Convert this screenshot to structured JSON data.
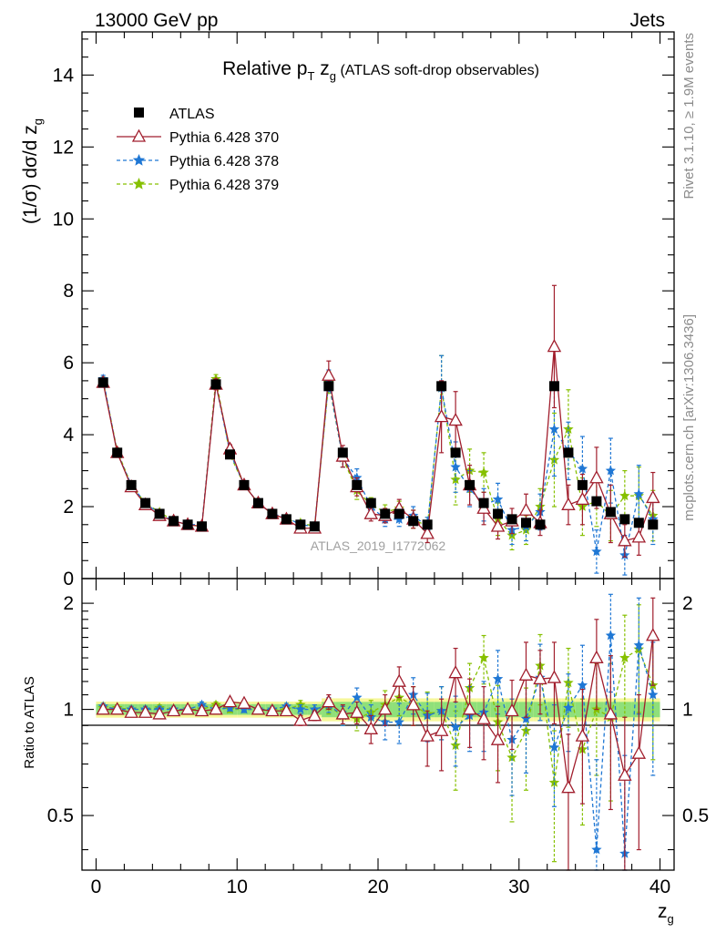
{
  "header": {
    "left": "13000 GeV pp",
    "right": "Jets"
  },
  "side_labels": {
    "top": "Rivet 3.1.10, ≥ 1.9M events",
    "bottom": "mcplots.cern.ch [arXiv:1306.3436]"
  },
  "watermark": "ATLAS_2019_I1772062",
  "chart_data": [
    {
      "type": "scatter",
      "panel": "main",
      "title": {
        "main": "Relative p",
        "sub1": "T",
        "mid": " z",
        "sub2": "g",
        "rest": " (ATLAS soft-drop observables)"
      },
      "ylabel": {
        "main": "(1/σ) dσ/d z",
        "sub": "g"
      },
      "xlim": [
        -1,
        41
      ],
      "ylim": [
        0,
        15.2
      ],
      "yticks": [
        "0",
        "2",
        "4",
        "6",
        "8",
        "10",
        "12",
        "14"
      ],
      "xticks": [
        "0",
        "10",
        "20",
        "30",
        "40"
      ],
      "legend_position": "top-left",
      "x": [
        0.5,
        1.5,
        2.5,
        3.5,
        4.5,
        5.5,
        6.5,
        7.5,
        8.5,
        9.5,
        10.5,
        11.5,
        12.5,
        13.5,
        14.5,
        15.5,
        16.5,
        17.5,
        18.5,
        19.5,
        20.5,
        21.5,
        22.5,
        23.5,
        24.5,
        25.5,
        26.5,
        27.5,
        28.5,
        29.5,
        30.5,
        31.5,
        32.5,
        33.5,
        34.5,
        35.5,
        36.5,
        37.5,
        38.5,
        39.5
      ],
      "series": [
        {
          "name": "ATLAS",
          "color": "#000000",
          "marker": "square",
          "values": [
            5.45,
            3.5,
            2.6,
            2.1,
            1.8,
            1.6,
            1.5,
            1.45,
            5.4,
            3.45,
            2.6,
            2.1,
            1.8,
            1.65,
            1.5,
            1.45,
            5.35,
            3.5,
            2.6,
            2.1,
            1.8,
            1.8,
            1.6,
            1.5,
            5.35,
            3.5,
            2.6,
            2.1,
            1.8,
            1.65,
            1.55,
            1.5,
            5.35,
            3.5,
            2.6,
            2.15,
            1.85,
            1.65,
            1.55,
            1.5
          ]
        },
        {
          "name": "Pythia 6.428 370",
          "color": "#a11e2d",
          "marker": "triangle",
          "values": [
            5.45,
            3.5,
            2.55,
            2.05,
            1.75,
            1.6,
            1.5,
            1.45,
            5.4,
            3.6,
            2.6,
            2.1,
            1.8,
            1.65,
            1.4,
            1.4,
            5.65,
            3.4,
            2.55,
            1.8,
            1.75,
            1.95,
            1.65,
            1.25,
            4.5,
            4.4,
            2.6,
            1.95,
            1.45,
            1.6,
            1.9,
            1.55,
            6.45,
            2.05,
            2.2,
            2.8,
            1.8,
            1.05,
            1.15,
            2.25
          ],
          "errors": [
            0.12,
            0.1,
            0.08,
            0.07,
            0.07,
            0.06,
            0.06,
            0.06,
            0.15,
            0.12,
            0.1,
            0.09,
            0.08,
            0.08,
            0.08,
            0.08,
            0.4,
            0.3,
            0.25,
            0.2,
            0.2,
            0.25,
            0.25,
            0.25,
            1.0,
            0.8,
            0.55,
            0.45,
            0.35,
            0.35,
            0.45,
            0.35,
            1.7,
            0.55,
            0.7,
            0.85,
            0.8,
            0.45,
            0.5,
            0.7
          ]
        },
        {
          "name": "Pythia 6.428 378",
          "color": "#1f77d4",
          "marker": "star",
          "values": [
            5.55,
            3.5,
            2.6,
            2.1,
            1.8,
            1.6,
            1.5,
            1.5,
            5.4,
            3.5,
            2.6,
            2.1,
            1.8,
            1.7,
            1.5,
            1.45,
            5.5,
            3.35,
            2.8,
            2.0,
            1.65,
            1.65,
            1.75,
            1.45,
            5.3,
            3.1,
            2.5,
            2.05,
            2.2,
            1.35,
            1.45,
            1.85,
            4.15,
            3.55,
            3.05,
            0.75,
            3.0,
            0.65,
            2.35,
            1.65
          ],
          "errors": [
            0.1,
            0.08,
            0.06,
            0.06,
            0.05,
            0.05,
            0.05,
            0.05,
            0.12,
            0.1,
            0.08,
            0.07,
            0.07,
            0.06,
            0.06,
            0.06,
            0.3,
            0.25,
            0.25,
            0.2,
            0.2,
            0.2,
            0.25,
            0.25,
            0.9,
            0.7,
            0.5,
            0.45,
            0.45,
            0.4,
            0.4,
            0.5,
            1.3,
            0.8,
            0.9,
            0.6,
            0.9,
            0.55,
            0.8,
            0.7
          ]
        },
        {
          "name": "Pythia 6.428 379",
          "color": "#86c000",
          "marker": "star",
          "values": [
            5.5,
            3.55,
            2.6,
            2.1,
            1.85,
            1.6,
            1.5,
            1.45,
            5.55,
            3.45,
            2.6,
            2.1,
            1.8,
            1.65,
            1.55,
            1.45,
            5.45,
            3.35,
            2.45,
            2.05,
            1.85,
            1.95,
            1.65,
            1.45,
            5.3,
            2.75,
            3.0,
            2.95,
            1.65,
            1.2,
            1.35,
            2.0,
            3.3,
            4.15,
            2.0,
            2.15,
            1.75,
            2.3,
            2.3,
            1.75
          ],
          "errors": [
            0.1,
            0.08,
            0.06,
            0.06,
            0.05,
            0.05,
            0.05,
            0.05,
            0.12,
            0.1,
            0.08,
            0.07,
            0.07,
            0.06,
            0.06,
            0.06,
            0.3,
            0.25,
            0.25,
            0.2,
            0.2,
            0.2,
            0.25,
            0.25,
            0.9,
            0.7,
            0.6,
            0.55,
            0.45,
            0.4,
            0.4,
            0.5,
            1.3,
            1.1,
            0.8,
            0.7,
            0.7,
            0.7,
            0.8,
            0.7
          ]
        }
      ]
    },
    {
      "type": "scatter",
      "panel": "ratio",
      "ylabel": "Ratio to ATLAS",
      "xlabel": {
        "main": "z",
        "sub": "g"
      },
      "xlim": [
        -1,
        41
      ],
      "ylim": [
        0.35,
        2.35
      ],
      "yticks": [
        "0.5",
        "1",
        "2"
      ],
      "xticks": [
        "0",
        "10",
        "20",
        "30",
        "40"
      ],
      "x": [
        0.5,
        1.5,
        2.5,
        3.5,
        4.5,
        5.5,
        6.5,
        7.5,
        8.5,
        9.5,
        10.5,
        11.5,
        12.5,
        13.5,
        14.5,
        15.5,
        16.5,
        17.5,
        18.5,
        19.5,
        20.5,
        21.5,
        22.5,
        23.5,
        24.5,
        25.5,
        26.5,
        27.5,
        28.5,
        29.5,
        30.5,
        31.5,
        32.5,
        33.5,
        34.5,
        35.5,
        36.5,
        37.5,
        38.5,
        39.5
      ],
      "band_color_inner": "#8fe07a",
      "band_color_outer": "#f6f79a",
      "series": [
        {
          "name": "Pythia 6.428 370",
          "color": "#a11e2d",
          "marker": "triangle",
          "values": [
            1.0,
            1.0,
            0.98,
            0.98,
            0.97,
            0.99,
            1.0,
            0.99,
            1.0,
            1.05,
            1.04,
            1.0,
            0.99,
            0.99,
            0.93,
            0.96,
            1.05,
            0.97,
            0.98,
            0.88,
            1.0,
            1.2,
            1.03,
            0.84,
            0.87,
            1.27,
            1.0,
            0.94,
            0.82,
            0.99,
            1.25,
            1.22,
            1.23,
            0.6,
            0.84,
            1.4,
            0.97,
            0.65,
            0.75,
            1.62
          ],
          "errors": [
            0.02,
            0.02,
            0.02,
            0.02,
            0.02,
            0.02,
            0.02,
            0.02,
            0.02,
            0.02,
            0.02,
            0.02,
            0.02,
            0.02,
            0.03,
            0.03,
            0.05,
            0.06,
            0.07,
            0.08,
            0.1,
            0.12,
            0.13,
            0.15,
            0.2,
            0.22,
            0.22,
            0.22,
            0.2,
            0.22,
            0.3,
            0.25,
            0.32,
            0.25,
            0.3,
            0.4,
            0.45,
            0.3,
            0.35,
            0.45
          ]
        },
        {
          "name": "Pythia 6.428 378",
          "color": "#1f77d4",
          "marker": "star",
          "values": [
            1.02,
            1.0,
            1.0,
            1.0,
            1.0,
            1.0,
            1.0,
            1.03,
            1.0,
            1.01,
            1.0,
            1.0,
            1.0,
            1.02,
            1.0,
            1.0,
            1.03,
            0.96,
            1.08,
            0.95,
            0.92,
            0.92,
            1.1,
            0.96,
            0.99,
            0.89,
            0.96,
            0.98,
            1.22,
            0.82,
            0.94,
            1.23,
            0.78,
            1.01,
            1.17,
            0.4,
            1.62,
            0.39,
            1.52,
            1.1
          ],
          "errors": [
            0.02,
            0.02,
            0.02,
            0.02,
            0.02,
            0.02,
            0.02,
            0.02,
            0.02,
            0.02,
            0.02,
            0.02,
            0.02,
            0.02,
            0.03,
            0.03,
            0.05,
            0.06,
            0.07,
            0.08,
            0.1,
            0.12,
            0.13,
            0.15,
            0.17,
            0.2,
            0.2,
            0.22,
            0.25,
            0.25,
            0.28,
            0.3,
            0.25,
            0.25,
            0.35,
            0.32,
            0.5,
            0.35,
            0.55,
            0.45
          ]
        },
        {
          "name": "Pythia 6.428 379",
          "color": "#86c000",
          "marker": "star",
          "values": [
            1.01,
            1.01,
            1.0,
            1.0,
            1.01,
            1.0,
            1.0,
            1.0,
            1.03,
            1.0,
            1.0,
            1.0,
            1.0,
            1.0,
            1.03,
            1.0,
            1.02,
            0.96,
            0.94,
            0.98,
            1.03,
            1.08,
            1.03,
            0.97,
            0.99,
            0.79,
            1.15,
            1.4,
            0.92,
            0.73,
            0.87,
            1.33,
            0.62,
            1.19,
            0.77,
            1.0,
            0.95,
            1.4,
            1.48,
            1.17
          ],
          "errors": [
            0.02,
            0.02,
            0.02,
            0.02,
            0.02,
            0.02,
            0.02,
            0.02,
            0.02,
            0.02,
            0.02,
            0.02,
            0.02,
            0.02,
            0.03,
            0.03,
            0.05,
            0.06,
            0.07,
            0.08,
            0.1,
            0.12,
            0.13,
            0.15,
            0.17,
            0.2,
            0.2,
            0.22,
            0.25,
            0.25,
            0.28,
            0.3,
            0.25,
            0.3,
            0.3,
            0.35,
            0.4,
            0.45,
            0.5,
            0.45
          ]
        }
      ]
    }
  ]
}
